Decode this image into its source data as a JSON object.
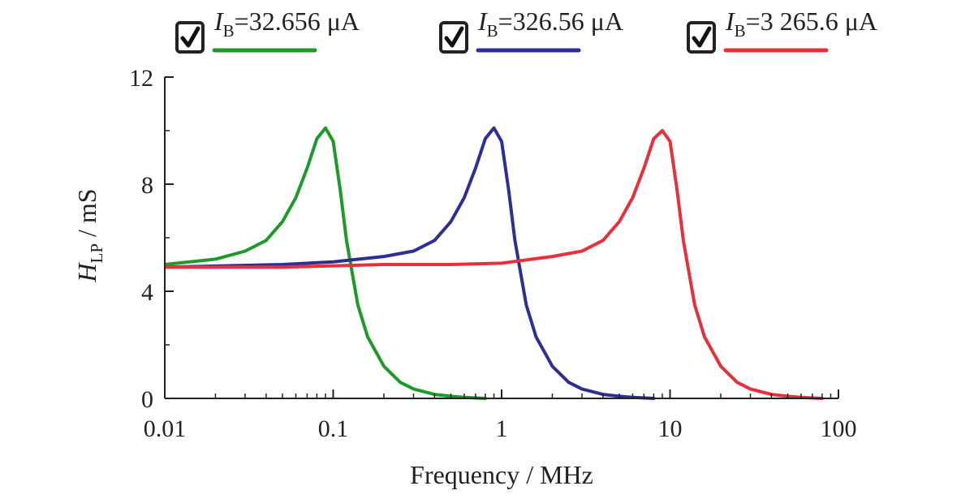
{
  "chart_data": {
    "type": "line",
    "title": "",
    "xlabel": "Frequency / MHz",
    "ylabel": {
      "symbol": "H",
      "subscript": "LP",
      "unit": " / mS"
    },
    "x_scale": "log",
    "xlim": [
      0.01,
      100
    ],
    "ylim": [
      0,
      12
    ],
    "x_ticks": [
      {
        "value": 0.01,
        "label": "0.01"
      },
      {
        "value": 0.1,
        "label": "0.1"
      },
      {
        "value": 1,
        "label": "1"
      },
      {
        "value": 10,
        "label": "10"
      },
      {
        "value": 100,
        "label": "100"
      }
    ],
    "y_ticks": [
      {
        "value": 0,
        "label": "0"
      },
      {
        "value": 4,
        "label": "4"
      },
      {
        "value": 8,
        "label": "8"
      },
      {
        "value": 12,
        "label": "12"
      }
    ],
    "grid": false,
    "legend_position": "top",
    "series": [
      {
        "legend": {
          "symbol": "I",
          "subscript": "B",
          "value": "=32.656 μA"
        },
        "checked": true,
        "color": "#1e9a2a",
        "x": [
          0.01,
          0.02,
          0.03,
          0.04,
          0.05,
          0.06,
          0.07,
          0.08,
          0.09,
          0.1,
          0.11,
          0.12,
          0.14,
          0.16,
          0.2,
          0.25,
          0.3,
          0.4,
          0.5,
          0.6,
          0.8
        ],
        "y": [
          5.0,
          5.2,
          5.5,
          5.9,
          6.6,
          7.5,
          8.6,
          9.7,
          10.1,
          9.6,
          7.8,
          5.9,
          3.5,
          2.3,
          1.2,
          0.6,
          0.35,
          0.15,
          0.08,
          0.04,
          0.0
        ]
      },
      {
        "legend": {
          "symbol": "I",
          "subscript": "B",
          "value": "=326.56 μA"
        },
        "checked": true,
        "color": "#2e2e94",
        "x": [
          0.01,
          0.05,
          0.1,
          0.2,
          0.3,
          0.4,
          0.5,
          0.6,
          0.7,
          0.8,
          0.9,
          1.0,
          1.1,
          1.2,
          1.4,
          1.6,
          2.0,
          2.5,
          3.0,
          4.0,
          5.0,
          6.0,
          8.0
        ],
        "y": [
          4.9,
          5.0,
          5.1,
          5.3,
          5.5,
          5.9,
          6.6,
          7.5,
          8.6,
          9.7,
          10.1,
          9.6,
          7.8,
          5.9,
          3.5,
          2.3,
          1.2,
          0.6,
          0.35,
          0.15,
          0.08,
          0.04,
          0.0
        ]
      },
      {
        "legend": {
          "symbol": "I",
          "subscript": "B",
          "value": "=3 265.6 μA"
        },
        "checked": true,
        "color": "#e8303a",
        "x": [
          0.01,
          0.05,
          0.1,
          0.2,
          0.5,
          1.0,
          2.0,
          3.0,
          4.0,
          5.0,
          6.0,
          7.0,
          8.0,
          9.0,
          10.0,
          11.0,
          12.0,
          14.0,
          16.0,
          20.0,
          25.0,
          30.0,
          40.0,
          50.0,
          60.0,
          80.0
        ],
        "y": [
          4.9,
          4.9,
          4.95,
          5.0,
          5.0,
          5.05,
          5.3,
          5.5,
          5.9,
          6.6,
          7.5,
          8.6,
          9.7,
          10.0,
          9.6,
          7.8,
          5.9,
          3.5,
          2.3,
          1.2,
          0.6,
          0.35,
          0.15,
          0.08,
          0.04,
          0.0
        ]
      }
    ]
  },
  "colors": {
    "axis": "#222222",
    "checkbox_border": "#222222"
  }
}
